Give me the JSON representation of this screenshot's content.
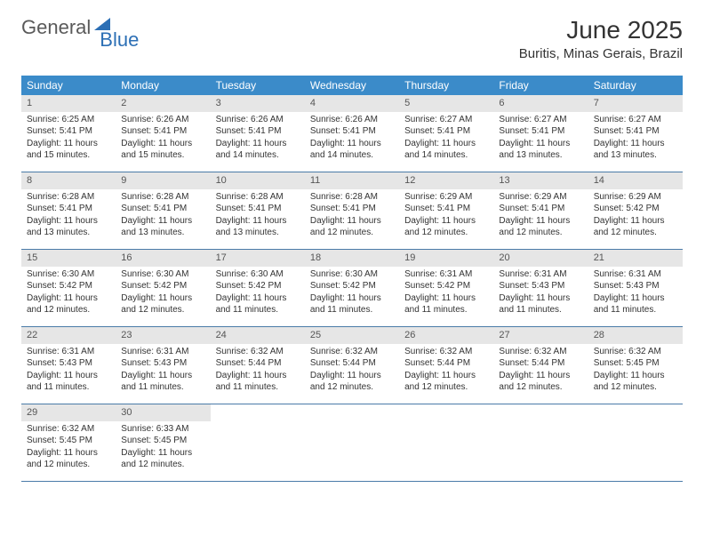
{
  "logo": {
    "text1": "General",
    "text2": "Blue"
  },
  "title": "June 2025",
  "location": "Buritis, Minas Gerais, Brazil",
  "colors": {
    "header_bg": "#3b8bc9",
    "header_text": "#ffffff",
    "daynum_bg": "#e6e6e6",
    "row_border": "#4a7ba8",
    "body_text": "#333333",
    "logo_gray": "#5a5a5a",
    "logo_blue": "#2c6fb5"
  },
  "day_names": [
    "Sunday",
    "Monday",
    "Tuesday",
    "Wednesday",
    "Thursday",
    "Friday",
    "Saturday"
  ],
  "days": [
    {
      "n": "1",
      "sunrise": "6:25 AM",
      "sunset": "5:41 PM",
      "dayh": "11",
      "daym": "15"
    },
    {
      "n": "2",
      "sunrise": "6:26 AM",
      "sunset": "5:41 PM",
      "dayh": "11",
      "daym": "15"
    },
    {
      "n": "3",
      "sunrise": "6:26 AM",
      "sunset": "5:41 PM",
      "dayh": "11",
      "daym": "14"
    },
    {
      "n": "4",
      "sunrise": "6:26 AM",
      "sunset": "5:41 PM",
      "dayh": "11",
      "daym": "14"
    },
    {
      "n": "5",
      "sunrise": "6:27 AM",
      "sunset": "5:41 PM",
      "dayh": "11",
      "daym": "14"
    },
    {
      "n": "6",
      "sunrise": "6:27 AM",
      "sunset": "5:41 PM",
      "dayh": "11",
      "daym": "13"
    },
    {
      "n": "7",
      "sunrise": "6:27 AM",
      "sunset": "5:41 PM",
      "dayh": "11",
      "daym": "13"
    },
    {
      "n": "8",
      "sunrise": "6:28 AM",
      "sunset": "5:41 PM",
      "dayh": "11",
      "daym": "13"
    },
    {
      "n": "9",
      "sunrise": "6:28 AM",
      "sunset": "5:41 PM",
      "dayh": "11",
      "daym": "13"
    },
    {
      "n": "10",
      "sunrise": "6:28 AM",
      "sunset": "5:41 PM",
      "dayh": "11",
      "daym": "13"
    },
    {
      "n": "11",
      "sunrise": "6:28 AM",
      "sunset": "5:41 PM",
      "dayh": "11",
      "daym": "12"
    },
    {
      "n": "12",
      "sunrise": "6:29 AM",
      "sunset": "5:41 PM",
      "dayh": "11",
      "daym": "12"
    },
    {
      "n": "13",
      "sunrise": "6:29 AM",
      "sunset": "5:41 PM",
      "dayh": "11",
      "daym": "12"
    },
    {
      "n": "14",
      "sunrise": "6:29 AM",
      "sunset": "5:42 PM",
      "dayh": "11",
      "daym": "12"
    },
    {
      "n": "15",
      "sunrise": "6:30 AM",
      "sunset": "5:42 PM",
      "dayh": "11",
      "daym": "12"
    },
    {
      "n": "16",
      "sunrise": "6:30 AM",
      "sunset": "5:42 PM",
      "dayh": "11",
      "daym": "12"
    },
    {
      "n": "17",
      "sunrise": "6:30 AM",
      "sunset": "5:42 PM",
      "dayh": "11",
      "daym": "11"
    },
    {
      "n": "18",
      "sunrise": "6:30 AM",
      "sunset": "5:42 PM",
      "dayh": "11",
      "daym": "11"
    },
    {
      "n": "19",
      "sunrise": "6:31 AM",
      "sunset": "5:42 PM",
      "dayh": "11",
      "daym": "11"
    },
    {
      "n": "20",
      "sunrise": "6:31 AM",
      "sunset": "5:43 PM",
      "dayh": "11",
      "daym": "11"
    },
    {
      "n": "21",
      "sunrise": "6:31 AM",
      "sunset": "5:43 PM",
      "dayh": "11",
      "daym": "11"
    },
    {
      "n": "22",
      "sunrise": "6:31 AM",
      "sunset": "5:43 PM",
      "dayh": "11",
      "daym": "11"
    },
    {
      "n": "23",
      "sunrise": "6:31 AM",
      "sunset": "5:43 PM",
      "dayh": "11",
      "daym": "11"
    },
    {
      "n": "24",
      "sunrise": "6:32 AM",
      "sunset": "5:44 PM",
      "dayh": "11",
      "daym": "11"
    },
    {
      "n": "25",
      "sunrise": "6:32 AM",
      "sunset": "5:44 PM",
      "dayh": "11",
      "daym": "12"
    },
    {
      "n": "26",
      "sunrise": "6:32 AM",
      "sunset": "5:44 PM",
      "dayh": "11",
      "daym": "12"
    },
    {
      "n": "27",
      "sunrise": "6:32 AM",
      "sunset": "5:44 PM",
      "dayh": "11",
      "daym": "12"
    },
    {
      "n": "28",
      "sunrise": "6:32 AM",
      "sunset": "5:45 PM",
      "dayh": "11",
      "daym": "12"
    },
    {
      "n": "29",
      "sunrise": "6:32 AM",
      "sunset": "5:45 PM",
      "dayh": "11",
      "daym": "12"
    },
    {
      "n": "30",
      "sunrise": "6:33 AM",
      "sunset": "5:45 PM",
      "dayh": "11",
      "daym": "12"
    }
  ],
  "labels": {
    "sunrise": "Sunrise:",
    "sunset": "Sunset:",
    "daylight_prefix": "Daylight:",
    "hours_word": "hours",
    "and_word": "and",
    "minutes_word": "minutes."
  }
}
